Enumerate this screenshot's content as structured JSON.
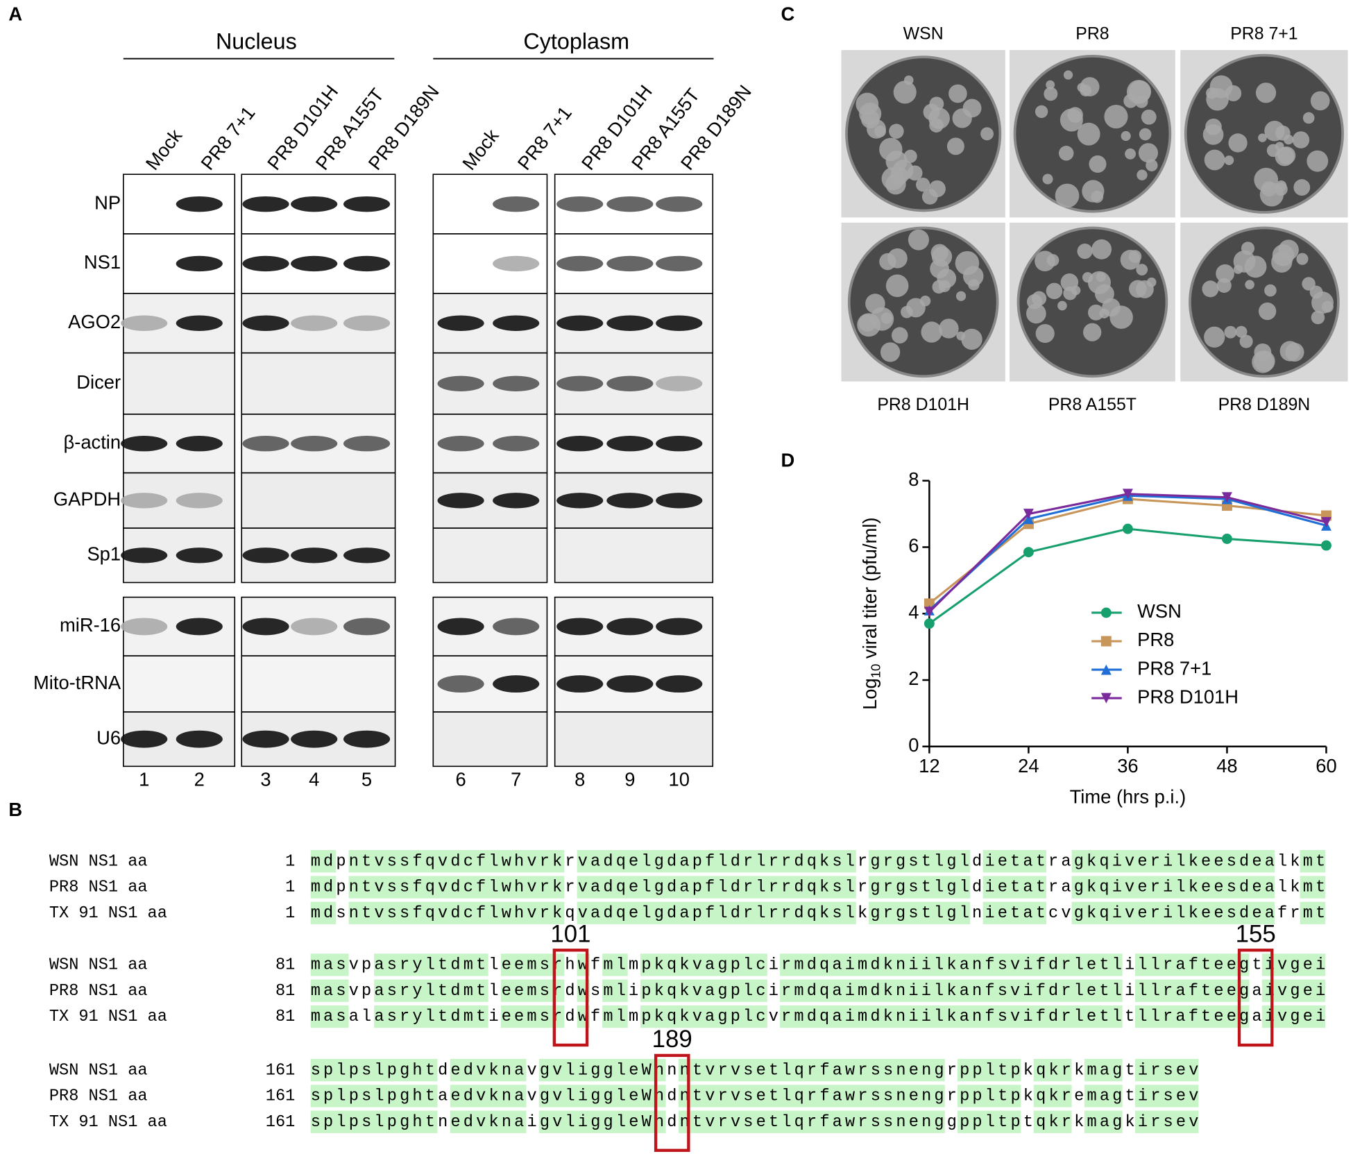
{
  "panel_labels": [
    "A",
    "B",
    "C",
    "D"
  ],
  "blots": {
    "nucleus_header": "Nucleus",
    "cytoplasm_header": "Cytoplasm",
    "nucleus_lanes": [
      "Mock",
      "PR8 7+1",
      "PR8 D101H",
      "PR8 A155T",
      "PR8 D189N"
    ],
    "cytoplasm_lanes": [
      "Mock",
      "PR8 7+1",
      "PR8 D101H",
      "PR8 A155T",
      "PR8 D189N"
    ],
    "rows": [
      "NP",
      "NS1",
      "AGO2",
      "Dicer",
      "β-actin",
      "GAPDH",
      "Sp1",
      "miR-16",
      "Mito-tRNA",
      "U6"
    ],
    "lane_numbers": [
      1,
      2,
      3,
      4,
      5,
      6,
      7,
      8,
      9,
      10
    ]
  },
  "plaques": {
    "labels": [
      "WSN",
      "PR8",
      "PR8 7+1",
      "PR8 D101H",
      "PR8 A155T",
      "PR8 D189N"
    ]
  },
  "alignment": {
    "blocks": [
      {
        "start": 1,
        "rows": [
          {
            "name": "WSN NS1 aa",
            "seq": "mdpntvssfqvdcflwhvrkrvadqelgdapfldrlrrdqkslrgrgstlgldietatragkqiverilkeesdealkmt"
          },
          {
            "name": "PR8 NS1 aa",
            "seq": "mdpntvssfqvdcflwhvrkrvadqelgdapfldrlrrdqkslrgrgstlgldietatragkqiverilkeesdealkmt"
          },
          {
            "name": "TX 91 NS1 aa",
            "seq": "mdsntvssfqvdcflwhvrkqvadqelgdapfldrlrrdqkslkgrgstlglnietatcvgkqiverilkeesdeafrmt"
          }
        ]
      },
      {
        "start": 81,
        "rows": [
          {
            "name": "WSN NS1 aa",
            "seq": "masvpasryltdmtleemsrhwfmlmpkqkvagplcirmdqaimdkniilkanfsvifdrletlillrafteegtivgei"
          },
          {
            "name": "PR8 NS1 aa",
            "seq": "masvpasryltdmtleemsrdwsmlipkqkvagplcirmdqaimdkniilkanfsvifdrletlillrafteegaivgei"
          },
          {
            "name": "TX 91 NS1 aa",
            "seq": "masalasryltdmtieemsrdwfmlmpkqkvagplcvrmdqaimdkniilkanfsvifdrletltllrafteegaivgei"
          }
        ]
      },
      {
        "start": 161,
        "rows": [
          {
            "name": "WSN NS1 aa",
            "seq": "splpslpghtdedvknavgvliggleWnnntvrvsetlqrfawrssnengrppltpkqkrkmagtirsev"
          },
          {
            "name": "PR8 NS1 aa",
            "seq": "splpslpghtaedvknavgvliggleWndntvrvsetlqrfawrssnengrppltpkqkremagtirsev"
          },
          {
            "name": "TX 91 NS1 aa",
            "seq": "splpslpghtnedvknaigvliggleWndntvrvsetlqrfawrssnenggppltptqkrkmagkirsev"
          }
        ]
      }
    ],
    "highlights": [
      101,
      155,
      189
    ]
  },
  "chart_data": {
    "type": "line",
    "x_label": "Time (hrs p.i.)",
    "y_label": {
      "prefix": "Log",
      "subscript": "10",
      "rest": "viral titer (pfu/ml)"
    },
    "x": [
      12,
      24,
      36,
      48,
      60
    ],
    "xlim": [
      12,
      60
    ],
    "xticks": [
      12,
      24,
      36,
      48,
      60
    ],
    "ylim": [
      0,
      8
    ],
    "yticks": [
      0,
      2,
      4,
      6,
      8
    ],
    "series": [
      {
        "name": "WSN",
        "color": "#17a06e",
        "marker": "circle",
        "values": [
          3.7,
          5.85,
          6.55,
          6.25,
          6.05
        ]
      },
      {
        "name": "PR8",
        "color": "#c8955a",
        "marker": "square",
        "values": [
          4.3,
          6.7,
          7.45,
          7.25,
          6.95
        ]
      },
      {
        "name": "PR8 7+1",
        "color": "#1f6fd6",
        "marker": "triangle-up",
        "values": [
          4.1,
          6.85,
          7.55,
          7.45,
          6.65
        ]
      },
      {
        "name": "PR8 D101H",
        "color": "#7b2a9c",
        "marker": "triangle-down",
        "values": [
          4.05,
          7.0,
          7.6,
          7.5,
          6.75
        ]
      }
    ]
  }
}
